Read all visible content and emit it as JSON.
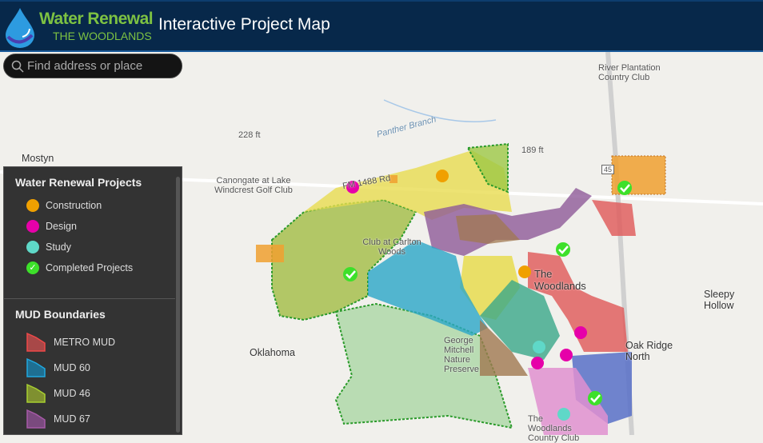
{
  "header": {
    "brand_line1": "Water Renewal",
    "brand_line2": "THE WOODLANDS",
    "title": "Interactive Project Map"
  },
  "search": {
    "placeholder": "Find address or place"
  },
  "legend": {
    "projects_title": "Water Renewal Projects",
    "projects": [
      {
        "label": "Construction",
        "color": "#f0a000",
        "icon": "construction-icon"
      },
      {
        "label": "Design",
        "color": "#e600a9",
        "icon": "design-icon"
      },
      {
        "label": "Study",
        "color": "#5fd8c8",
        "icon": "study-icon"
      },
      {
        "label": "Completed Projects",
        "color": "#3de02a",
        "icon": "check-icon"
      }
    ],
    "mud_title": "MUD Boundaries",
    "muds": [
      {
        "label": "METRO MUD",
        "fill": "#a84848",
        "stroke": "#f04848"
      },
      {
        "label": "MUD 60",
        "fill": "#1e6f92",
        "stroke": "#20a8e0"
      },
      {
        "label": "MUD 46",
        "fill": "#7f9030",
        "stroke": "#a8d030"
      },
      {
        "label": "MUD 67",
        "fill": "#7a4a7e",
        "stroke": "#a85aa8"
      }
    ]
  },
  "map_labels": {
    "mostyn": "Mostyn",
    "elev228": "228 ft",
    "panther": "Panther Branch",
    "elev189": "189 ft",
    "fm1488": "FM 1488 Rd",
    "canongate": "Canongate at Lake Windcrest Golf Club",
    "carlton": "Club at Carlton Woods",
    "woodlands": "The Woodlands",
    "oklahoma": "Oklahoma",
    "river": "River Plantation Country Club",
    "sleepy": "Sleepy Hollow",
    "oakridge": "Oak Ridge North",
    "mitchell": "George Mitchell Nature Preserve",
    "wcc": "The Woodlands Country Club",
    "i45": "45"
  }
}
